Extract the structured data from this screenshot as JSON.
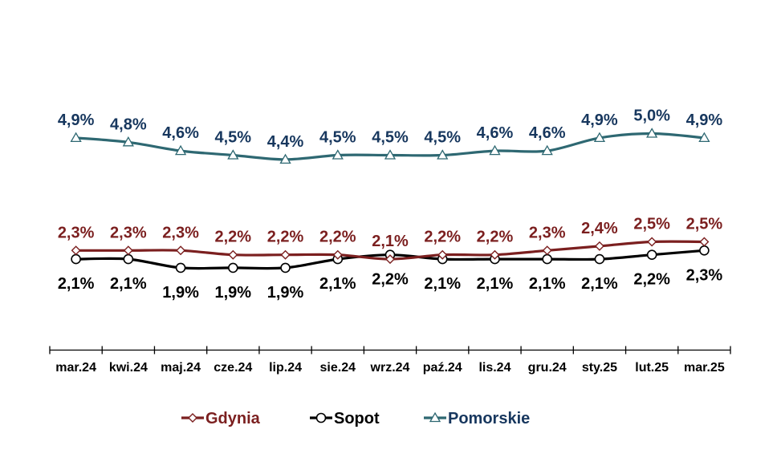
{
  "chart_data": {
    "type": "line",
    "categories": [
      "mar.24",
      "kwi.24",
      "maj.24",
      "cze.24",
      "lip.24",
      "sie.24",
      "wrz.24",
      "paź.24",
      "lis.24",
      "gru.24",
      "sty.25",
      "lut.25",
      "mar.25"
    ],
    "ylim": [
      0,
      5.6
    ],
    "series": [
      {
        "name": "Gdynia",
        "color": "#7B1F1F",
        "marker": "diamond",
        "values": [
          2.3,
          2.3,
          2.3,
          2.2,
          2.2,
          2.2,
          2.1,
          2.2,
          2.2,
          2.3,
          2.4,
          2.5,
          2.5
        ],
        "labels": [
          "2,3%",
          "2,3%",
          "2,3%",
          "2,2%",
          "2,2%",
          "2,2%",
          "2,1%",
          "2,2%",
          "2,2%",
          "2,3%",
          "2,4%",
          "2,5%",
          "2,5%"
        ],
        "label_position": "above"
      },
      {
        "name": "Sopot",
        "color": "#000000",
        "marker": "circle",
        "values": [
          2.1,
          2.1,
          1.9,
          1.9,
          1.9,
          2.1,
          2.2,
          2.1,
          2.1,
          2.1,
          2.1,
          2.2,
          2.3
        ],
        "labels": [
          "2,1%",
          "2,1%",
          "1,9%",
          "1,9%",
          "1,9%",
          "2,1%",
          "2,2%",
          "2,1%",
          "2,1%",
          "2,1%",
          "2,1%",
          "2,2%",
          "2,3%"
        ],
        "label_position": "below"
      },
      {
        "name": "Pomorskie",
        "color": "#2E6872",
        "label_color": "#17375E",
        "marker": "triangle",
        "values": [
          4.9,
          4.8,
          4.6,
          4.5,
          4.4,
          4.5,
          4.5,
          4.5,
          4.6,
          4.6,
          4.9,
          5.0,
          4.9
        ],
        "labels": [
          "4,9%",
          "4,8%",
          "4,6%",
          "4,5%",
          "4,4%",
          "4,5%",
          "4,5%",
          "4,5%",
          "4,6%",
          "4,6%",
          "4,9%",
          "5,0%",
          "4,9%"
        ],
        "label_position": "above"
      }
    ],
    "legend_position": "bottom-center",
    "legend": [
      {
        "name": "Gdynia",
        "color": "#7B1F1F"
      },
      {
        "name": "Sopot",
        "color": "#000000"
      },
      {
        "name": "Pomorskie",
        "color": "#17375E"
      }
    ]
  }
}
